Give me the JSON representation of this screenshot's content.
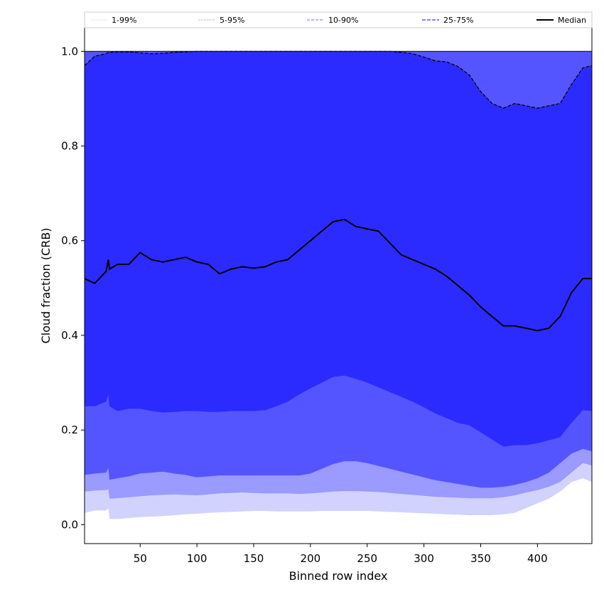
{
  "chart_data": {
    "type": "area",
    "xlabel": "Binned row index",
    "ylabel": "Cloud fraction (CRB)",
    "xlim": [
      1,
      448
    ],
    "ylim": [
      -0.04,
      1.05
    ],
    "x_ticks": [
      50,
      100,
      150,
      200,
      250,
      300,
      350,
      400
    ],
    "y_ticks": [
      0.0,
      0.2,
      0.4,
      0.6,
      0.8,
      1.0
    ],
    "x_tick_labels": [
      "50",
      "100",
      "150",
      "200",
      "250",
      "300",
      "350",
      "400"
    ],
    "y_tick_labels": [
      "0.0",
      "0.2",
      "0.4",
      "0.6",
      "0.8",
      "1.0"
    ],
    "grid": false,
    "legend_position": "top",
    "legend": [
      "1-99%",
      "5-95%",
      "10-90%",
      "25-75%",
      "Median"
    ],
    "colors": {
      "band_1_99": "#d2d2ff",
      "band_5_95": "#9a9aff",
      "band_10_90": "#5555ff",
      "band_25_75": "#2b2bff",
      "median": "#000000",
      "legend_1_99": "#e4e4ff",
      "legend_5_95": "#b8b8ff",
      "legend_10_90": "#8a8aff",
      "legend_25_75": "#5a5aee"
    },
    "x": [
      1,
      10,
      20,
      22,
      23,
      30,
      40,
      50,
      60,
      70,
      80,
      90,
      100,
      110,
      120,
      130,
      140,
      150,
      160,
      170,
      180,
      190,
      200,
      210,
      220,
      230,
      240,
      250,
      260,
      270,
      280,
      290,
      300,
      310,
      320,
      330,
      340,
      350,
      360,
      370,
      380,
      390,
      400,
      410,
      420,
      430,
      440,
      448
    ],
    "series": [
      {
        "name": "1%",
        "values": [
          0.025,
          0.03,
          0.03,
          0.035,
          0.012,
          0.012,
          0.014,
          0.016,
          0.017,
          0.018,
          0.02,
          0.022,
          0.023,
          0.025,
          0.026,
          0.027,
          0.028,
          0.029,
          0.029,
          0.028,
          0.028,
          0.028,
          0.028,
          0.029,
          0.029,
          0.029,
          0.029,
          0.029,
          0.028,
          0.027,
          0.026,
          0.025,
          0.024,
          0.023,
          0.022,
          0.021,
          0.02,
          0.02,
          0.02,
          0.022,
          0.025,
          0.035,
          0.045,
          0.055,
          0.07,
          0.09,
          0.098,
          0.09
        ]
      },
      {
        "name": "5%",
        "values": [
          0.07,
          0.072,
          0.073,
          0.075,
          0.055,
          0.056,
          0.058,
          0.06,
          0.062,
          0.063,
          0.064,
          0.063,
          0.062,
          0.064,
          0.066,
          0.067,
          0.068,
          0.067,
          0.066,
          0.066,
          0.066,
          0.065,
          0.066,
          0.068,
          0.07,
          0.071,
          0.071,
          0.07,
          0.069,
          0.067,
          0.065,
          0.063,
          0.061,
          0.059,
          0.058,
          0.057,
          0.056,
          0.056,
          0.056,
          0.058,
          0.062,
          0.068,
          0.073,
          0.08,
          0.09,
          0.11,
          0.13,
          0.125
        ]
      },
      {
        "name": "10%",
        "values": [
          0.105,
          0.108,
          0.11,
          0.12,
          0.095,
          0.098,
          0.102,
          0.108,
          0.11,
          0.112,
          0.108,
          0.105,
          0.1,
          0.102,
          0.104,
          0.104,
          0.104,
          0.104,
          0.104,
          0.104,
          0.104,
          0.104,
          0.108,
          0.118,
          0.128,
          0.134,
          0.134,
          0.13,
          0.124,
          0.118,
          0.112,
          0.106,
          0.1,
          0.094,
          0.09,
          0.086,
          0.082,
          0.078,
          0.078,
          0.08,
          0.084,
          0.09,
          0.098,
          0.11,
          0.13,
          0.15,
          0.16,
          0.155
        ]
      },
      {
        "name": "25%",
        "values": [
          0.25,
          0.25,
          0.26,
          0.275,
          0.25,
          0.24,
          0.245,
          0.245,
          0.24,
          0.237,
          0.238,
          0.24,
          0.24,
          0.238,
          0.238,
          0.24,
          0.24,
          0.24,
          0.242,
          0.25,
          0.26,
          0.275,
          0.288,
          0.3,
          0.312,
          0.315,
          0.308,
          0.3,
          0.29,
          0.28,
          0.27,
          0.26,
          0.248,
          0.235,
          0.225,
          0.215,
          0.21,
          0.195,
          0.18,
          0.165,
          0.168,
          0.168,
          0.172,
          0.178,
          0.185,
          0.215,
          0.242,
          0.24
        ]
      },
      {
        "name": "Median",
        "values": [
          0.52,
          0.51,
          0.535,
          0.56,
          0.54,
          0.55,
          0.55,
          0.575,
          0.56,
          0.555,
          0.56,
          0.565,
          0.555,
          0.55,
          0.53,
          0.54,
          0.545,
          0.542,
          0.545,
          0.555,
          0.56,
          0.58,
          0.6,
          0.62,
          0.64,
          0.645,
          0.63,
          0.625,
          0.62,
          0.595,
          0.57,
          0.56,
          0.55,
          0.54,
          0.525,
          0.505,
          0.485,
          0.46,
          0.44,
          0.42,
          0.42,
          0.415,
          0.41,
          0.415,
          0.44,
          0.49,
          0.52,
          0.52
        ]
      },
      {
        "name": "75%",
        "values": [
          0.97,
          0.99,
          0.995,
          0.998,
          0.998,
          0.999,
          0.999,
          0.997,
          0.995,
          0.996,
          0.998,
          0.999,
          1.0,
          1.0,
          1.0,
          1.0,
          1.0,
          1.0,
          1.0,
          1.0,
          1.0,
          1.0,
          1.0,
          1.0,
          1.0,
          1.0,
          1.0,
          1.0,
          1.0,
          1.0,
          0.998,
          0.995,
          0.988,
          0.98,
          0.978,
          0.968,
          0.95,
          0.915,
          0.89,
          0.88,
          0.89,
          0.885,
          0.88,
          0.885,
          0.89,
          0.93,
          0.965,
          0.97
        ]
      },
      {
        "name": "90%",
        "values": [
          1.0,
          1.0,
          1.0,
          1.0,
          1.0,
          1.0,
          1.0,
          1.0,
          1.0,
          1.0,
          1.0,
          1.0,
          1.0,
          1.0,
          1.0,
          1.0,
          1.0,
          1.0,
          1.0,
          1.0,
          1.0,
          1.0,
          1.0,
          1.0,
          1.0,
          1.0,
          1.0,
          1.0,
          1.0,
          1.0,
          1.0,
          1.0,
          1.0,
          1.0,
          1.0,
          1.0,
          1.0,
          1.0,
          1.0,
          1.0,
          1.0,
          1.0,
          1.0,
          1.0,
          1.0,
          1.0,
          1.0,
          1.0
        ]
      }
    ]
  }
}
